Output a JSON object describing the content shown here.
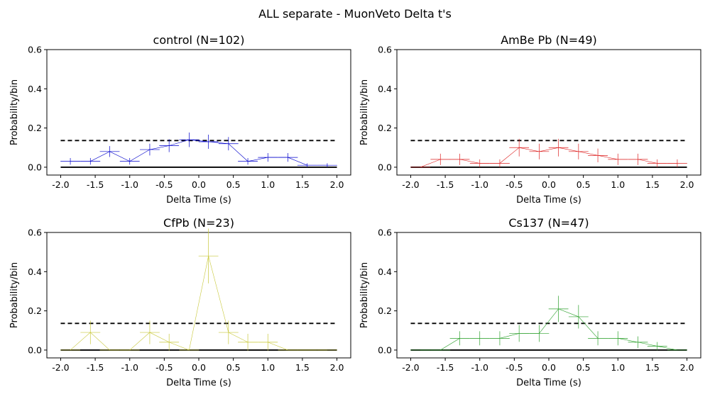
{
  "figure": {
    "suptitle": "ALL separate - MuonVeto Delta t's"
  },
  "chart_data": [
    {
      "type": "line",
      "title": "control (N=102)",
      "xlabel": "Delta Time (s)",
      "ylabel": "Probability/bin",
      "xlim": [
        -2.2,
        2.2
      ],
      "ylim": [
        -0.04,
        0.6
      ],
      "xticks": [
        "-2.0",
        "-1.5",
        "-1.0",
        "-0.5",
        "0.0",
        "0.5",
        "1.0",
        "1.5",
        "2.0"
      ],
      "yticks": [
        "0.0",
        "0.2",
        "0.4",
        "0.6"
      ],
      "color": "#0000cc",
      "reference_lines": {
        "dashed_y": 0.136,
        "solid_y": 0.0
      },
      "x": [
        -1.86,
        -1.57,
        -1.29,
        -1.0,
        -0.71,
        -0.43,
        -0.14,
        0.14,
        0.43,
        0.71,
        1.0,
        1.29,
        1.57,
        1.86
      ],
      "values": [
        0.03,
        0.03,
        0.08,
        0.03,
        0.09,
        0.11,
        0.14,
        0.13,
        0.12,
        0.03,
        0.05,
        0.05,
        0.01,
        0.01
      ],
      "yerr": [
        0.017,
        0.017,
        0.028,
        0.017,
        0.03,
        0.033,
        0.037,
        0.036,
        0.034,
        0.017,
        0.022,
        0.022,
        0.01,
        0.01
      ]
    },
    {
      "type": "line",
      "title": "AmBe Pb (N=49)",
      "xlabel": "Delta Time (s)",
      "ylabel": "Probability/bin",
      "xlim": [
        -2.2,
        2.2
      ],
      "ylim": [
        -0.04,
        0.6
      ],
      "xticks": [
        "-2.0",
        "-1.5",
        "-1.0",
        "-0.5",
        "0.0",
        "0.5",
        "1.0",
        "1.5",
        "2.0"
      ],
      "yticks": [
        "0.0",
        "0.2",
        "0.4",
        "0.6"
      ],
      "color": "#dd2222",
      "reference_lines": {
        "dashed_y": 0.136,
        "solid_y": 0.0
      },
      "x": [
        -1.86,
        -1.57,
        -1.29,
        -1.0,
        -0.71,
        -0.43,
        -0.14,
        0.14,
        0.43,
        0.71,
        1.0,
        1.29,
        1.57,
        1.86
      ],
      "values": [
        0.0,
        0.04,
        0.04,
        0.02,
        0.02,
        0.1,
        0.08,
        0.1,
        0.08,
        0.06,
        0.04,
        0.04,
        0.02,
        0.02
      ],
      "yerr": [
        0.0,
        0.029,
        0.029,
        0.02,
        0.02,
        0.045,
        0.04,
        0.045,
        0.04,
        0.035,
        0.029,
        0.029,
        0.02,
        0.02
      ]
    },
    {
      "type": "line",
      "title": "CfPb (N=23)",
      "xlabel": "Delta Time (s)",
      "ylabel": "Probability/bin",
      "xlim": [
        -2.2,
        2.2
      ],
      "ylim": [
        -0.04,
        0.6
      ],
      "xticks": [
        "-2.0",
        "-1.5",
        "-1.0",
        "-0.5",
        "0.0",
        "0.5",
        "1.0",
        "1.5",
        "2.0"
      ],
      "yticks": [
        "0.0",
        "0.2",
        "0.4",
        "0.6"
      ],
      "color": "#c8c83a",
      "reference_lines": {
        "dashed_y": 0.136,
        "solid_y": 0.0
      },
      "x": [
        -1.86,
        -1.57,
        -1.29,
        -1.0,
        -0.71,
        -0.43,
        -0.14,
        0.14,
        0.43,
        0.71,
        1.0,
        1.29,
        1.57,
        1.86
      ],
      "values": [
        0.0,
        0.09,
        0.0,
        0.0,
        0.09,
        0.04,
        0.0,
        0.48,
        0.09,
        0.04,
        0.04,
        0.0,
        0.0,
        0.0
      ],
      "yerr": [
        0.0,
        0.06,
        0.0,
        0.0,
        0.06,
        0.043,
        0.0,
        0.14,
        0.06,
        0.043,
        0.043,
        0.0,
        0.0,
        0.0
      ]
    },
    {
      "type": "line",
      "title": "Cs137 (N=47)",
      "xlabel": "Delta Time (s)",
      "ylabel": "Probability/bin",
      "xlim": [
        -2.2,
        2.2
      ],
      "ylim": [
        -0.04,
        0.6
      ],
      "xticks": [
        "-2.0",
        "-1.5",
        "-1.0",
        "-0.5",
        "0.0",
        "0.5",
        "1.0",
        "1.5",
        "2.0"
      ],
      "yticks": [
        "0.0",
        "0.2",
        "0.4",
        "0.6"
      ],
      "color": "#2ca02c",
      "reference_lines": {
        "dashed_y": 0.136,
        "solid_y": 0.0
      },
      "x": [
        -1.86,
        -1.57,
        -1.29,
        -1.0,
        -0.71,
        -0.43,
        -0.14,
        0.14,
        0.43,
        0.71,
        1.0,
        1.29,
        1.57,
        1.86
      ],
      "values": [
        0.0,
        0.0,
        0.06,
        0.06,
        0.06,
        0.085,
        0.085,
        0.21,
        0.17,
        0.06,
        0.06,
        0.04,
        0.02,
        0.0
      ],
      "yerr": [
        0.0,
        0.0,
        0.036,
        0.036,
        0.036,
        0.043,
        0.043,
        0.067,
        0.06,
        0.036,
        0.036,
        0.03,
        0.021,
        0.0
      ]
    }
  ]
}
